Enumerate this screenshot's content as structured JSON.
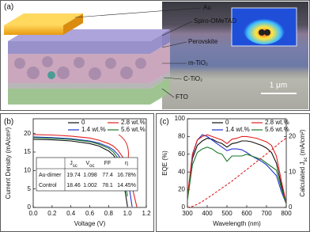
{
  "panel_a": {
    "label": "(a)",
    "layers": {
      "au": "Au",
      "spiro": "Spiro-OMeTAD",
      "perovskite": "Perovskite",
      "m_tio2": "m-TiO₂",
      "c_tio2": "C-TiO₂",
      "fto": "FTO"
    },
    "scale_bar": "1 μm"
  },
  "chart_data": [
    {
      "type": "line",
      "panel_label": "(b)",
      "xlabel": "Voltage (V)",
      "ylabel": "Current Density (mA/cm²)",
      "x": [
        0,
        0.2,
        0.4,
        0.6,
        0.7,
        0.8,
        0.85,
        0.9,
        0.95,
        1.0,
        1.05,
        1.1
      ],
      "xlim": [
        0,
        1.2
      ],
      "xticks": [
        {
          "value": 0,
          "label": "0.0"
        },
        0.2,
        0.4,
        0.6,
        0.8,
        {
          "value": 1,
          "label": "1.0"
        },
        1.2
      ],
      "ylim": [
        0,
        24
      ],
      "yticks": [
        0,
        5,
        10,
        15,
        20
      ],
      "series": [
        {
          "name": "0",
          "color": "#111111",
          "values": [
            18.46,
            18.3,
            18.0,
            17.3,
            16.6,
            15.3,
            14.2,
            12.3,
            8.5,
            0.3,
            null,
            null
          ]
        },
        {
          "name": "1.4 wt.%",
          "color": "#2233cc",
          "values": [
            19.1,
            18.9,
            18.6,
            18.0,
            17.4,
            16.4,
            15.6,
            14.3,
            12.2,
            8.5,
            0.2,
            null
          ]
        },
        {
          "name": "2.8 wt.%",
          "color": "#e02020",
          "values": [
            19.74,
            19.6,
            19.3,
            18.8,
            18.2,
            17.3,
            16.6,
            15.4,
            13.6,
            10.6,
            5.5,
            0.1
          ]
        },
        {
          "name": "5.6 wt.%",
          "color": "#1a7a2a",
          "values": [
            18.9,
            18.7,
            18.4,
            17.8,
            17.1,
            16.0,
            15.0,
            13.3,
            10.2,
            3.0,
            null,
            null
          ]
        }
      ],
      "table": {
        "header": [
          [
            "J",
            "sc"
          ],
          [
            "V",
            "oc"
          ],
          [
            "FF"
          ],
          [
            "η"
          ]
        ],
        "rows": [
          [
            "Au-dimer",
            "19.74",
            "1.098",
            "77.4",
            "16.78%"
          ],
          [
            "Control",
            "18.46",
            "1.002",
            "78.1",
            "14.45%"
          ]
        ]
      }
    },
    {
      "type": "line",
      "panel_label": "(c)",
      "xlabel": "Wavelength (nm)",
      "ylabel": "EQE (%)",
      "y2label": [
        "Calculated J",
        "sc",
        " (mA/cm²)"
      ],
      "x": [
        300,
        325,
        350,
        375,
        400,
        425,
        450,
        475,
        500,
        525,
        550,
        575,
        600,
        625,
        650,
        675,
        700,
        725,
        750,
        775,
        800
      ],
      "xlim": [
        300,
        800
      ],
      "xticks": [
        300,
        400,
        500,
        600,
        700,
        800
      ],
      "ylim": [
        0,
        100
      ],
      "yticks": [
        0,
        20,
        40,
        60,
        80,
        100
      ],
      "y2lim": [
        0,
        25
      ],
      "y2ticks": [
        0,
        10,
        20
      ],
      "series": [
        {
          "name": "0",
          "color": "#111111",
          "values": [
            10,
            55,
            70,
            75,
            78,
            77,
            74,
            72,
            68,
            72,
            73,
            75,
            75,
            74,
            72,
            70,
            67,
            62,
            50,
            25,
            5
          ]
        },
        {
          "name": "1.4 wt.%",
          "color": "#2233cc",
          "values": [
            10,
            58,
            76,
            82,
            80,
            76,
            72,
            68,
            64,
            66,
            66,
            65,
            62,
            58,
            55,
            52,
            48,
            42,
            36,
            18,
            4
          ]
        },
        {
          "name": "2.8 wt.%",
          "color": "#e02020",
          "values": [
            12,
            60,
            76,
            80,
            82,
            80,
            78,
            76,
            72,
            77,
            78,
            80,
            80,
            79,
            78,
            76,
            74,
            70,
            58,
            30,
            5
          ]
        },
        {
          "name": "5.6 wt.%",
          "color": "#1a7a2a",
          "values": [
            8,
            48,
            62,
            66,
            68,
            66,
            62,
            60,
            52,
            58,
            58,
            58,
            60,
            58,
            56,
            54,
            50,
            46,
            42,
            22,
            4
          ]
        },
        {
          "color": "#e02020",
          "axis": "y2",
          "dashed": true,
          "values": [
            0,
            0.3,
            0.9,
            1.7,
            2.6,
            3.5,
            4.5,
            5.5,
            6.4,
            7.4,
            8.5,
            9.6,
            10.7,
            11.8,
            12.9,
            14.0,
            15.1,
            16.2,
            17.4,
            18.6,
            19.5
          ]
        }
      ]
    }
  ]
}
